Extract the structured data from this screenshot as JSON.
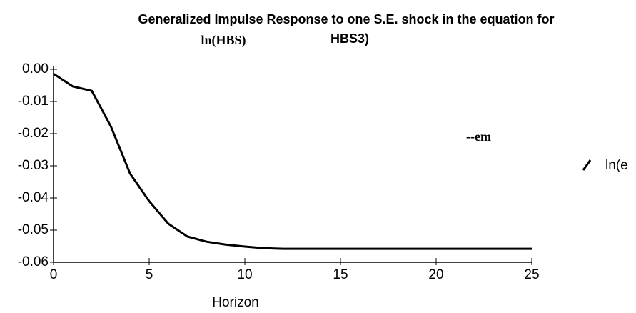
{
  "chart_data": {
    "type": "line",
    "title": "Generalized Impulse Response to one S.E. shock in the equation for",
    "annotations": [
      "ln(HBS)",
      "HBS3)",
      "--em"
    ],
    "x_label": "Horizon",
    "x": [
      0,
      1,
      2,
      3,
      4,
      5,
      6,
      7,
      8,
      9,
      10,
      11,
      12,
      13,
      14,
      15,
      16,
      17,
      18,
      19,
      20,
      21,
      22,
      23,
      24,
      25
    ],
    "series": [
      {
        "name": "ln(e",
        "color": "#000000",
        "values": [
          -0.0014,
          -0.0053,
          -0.0067,
          -0.0178,
          -0.0324,
          -0.041,
          -0.048,
          -0.052,
          -0.0536,
          -0.0545,
          -0.0551,
          -0.0556,
          -0.0558,
          -0.0558,
          -0.0558,
          -0.0558,
          -0.0558,
          -0.0558,
          -0.0558,
          -0.0558,
          -0.0558,
          -0.0558,
          -0.0558,
          -0.0558,
          -0.0558,
          -0.0558
        ]
      }
    ],
    "xlim": [
      0,
      25
    ],
    "xticks": [
      0,
      5,
      10,
      15,
      20,
      25
    ],
    "ylim": [
      -0.06,
      0
    ],
    "yticks": [
      {
        "value": 0,
        "label": "0.00"
      },
      -0.01,
      -0.02,
      -0.03,
      -0.04,
      -0.05,
      {
        "value": -0.06,
        "label": "-0.06"
      }
    ],
    "grid": false,
    "legend": "right"
  }
}
